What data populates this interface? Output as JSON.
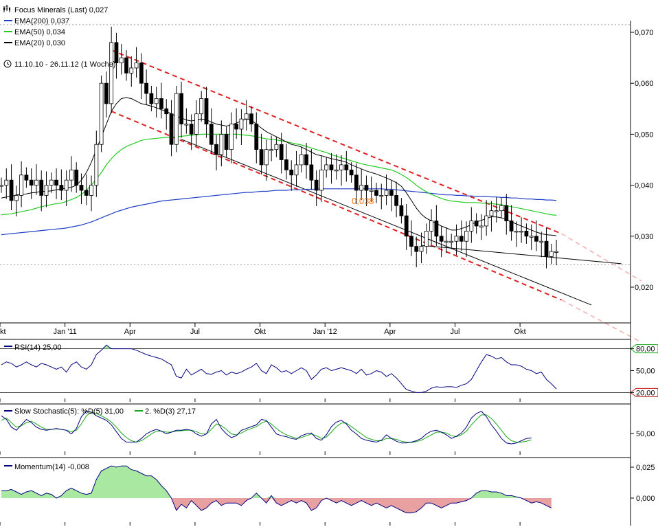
{
  "header": {
    "title": "Focus Minerals (Last) 0,027",
    "ema200": "EMA(200) 0,037",
    "ema50": "EMA(50) 0,034",
    "ema20": "EMA(20) 0,030",
    "period": "11.10.10 - 26.11.12 (1 Woche)",
    "annotation": "0,038"
  },
  "colors": {
    "ema200": "#1f3fc8",
    "ema50": "#22cc22",
    "ema20": "#000000",
    "channel": "#e02020",
    "annotation": "#f07818",
    "positive_fill": "#a8e8a0",
    "negative_fill": "#e8a0a0",
    "indicator_line": "#000080",
    "signal_line": "#18a818"
  },
  "chart_data": {
    "type": "candlestick",
    "instrument": "Focus Minerals",
    "interval": "1 Woche",
    "ylim": [
      0.014,
      0.072
    ],
    "yticks": [
      {
        "value": 0.07,
        "label": "0,070"
      },
      {
        "value": 0.06,
        "label": "0,060"
      },
      {
        "value": 0.05,
        "label": "0,050"
      },
      {
        "value": 0.04,
        "label": "0,040"
      },
      {
        "value": 0.03,
        "label": "0,030"
      },
      {
        "value": 0.02,
        "label": "0,020"
      }
    ],
    "xticks": [
      {
        "week": 0,
        "label": "Okt"
      },
      {
        "week": 13,
        "label": "Jan '11"
      },
      {
        "week": 26,
        "label": "Apr"
      },
      {
        "week": 39,
        "label": "Jul"
      },
      {
        "week": 52,
        "label": "Okt"
      },
      {
        "week": 65,
        "label": "Jan '12"
      },
      {
        "week": 78,
        "label": "Apr"
      },
      {
        "week": 91,
        "label": "Jul"
      },
      {
        "week": 104,
        "label": "Okt"
      }
    ],
    "total_weeks": 112,
    "first_week": 0,
    "dotted_level_high": 0.0715,
    "dotted_level_low": 0.0244,
    "close": [
      0.04,
      0.041,
      0.037,
      0.038,
      0.042,
      0.041,
      0.04,
      0.041,
      0.038,
      0.04,
      0.041,
      0.04,
      0.039,
      0.041,
      0.043,
      0.04,
      0.039,
      0.038,
      0.04,
      0.048,
      0.06,
      0.056,
      0.068,
      0.064,
      0.065,
      0.062,
      0.063,
      0.064,
      0.06,
      0.058,
      0.056,
      0.057,
      0.055,
      0.054,
      0.048,
      0.058,
      0.052,
      0.052,
      0.05,
      0.054,
      0.057,
      0.052,
      0.048,
      0.046,
      0.05,
      0.047,
      0.052,
      0.051,
      0.053,
      0.054,
      0.052,
      0.047,
      0.044,
      0.047,
      0.047,
      0.048,
      0.045,
      0.043,
      0.042,
      0.044,
      0.046,
      0.044,
      0.041,
      0.039,
      0.043,
      0.044,
      0.043,
      0.043,
      0.044,
      0.043,
      0.042,
      0.039,
      0.04,
      0.039,
      0.039,
      0.038,
      0.038,
      0.039,
      0.038,
      0.036,
      0.034,
      0.03,
      0.028,
      0.027,
      0.028,
      0.031,
      0.033,
      0.03,
      0.029,
      0.029,
      0.029,
      0.03,
      0.029,
      0.031,
      0.033,
      0.032,
      0.032,
      0.034,
      0.035,
      0.035,
      0.036,
      0.033,
      0.031,
      0.031,
      0.031,
      0.03,
      0.03,
      0.029,
      0.029,
      0.026,
      0.027,
      0.027
    ],
    "ema20": [
      0.0375,
      0.0377,
      0.0378,
      0.0381,
      0.0382,
      0.0383,
      0.0385,
      0.0386,
      0.0388,
      0.0388,
      0.0389,
      0.0391,
      0.0393,
      0.0394,
      0.0396,
      0.04,
      0.041,
      0.0425,
      0.0445,
      0.047,
      0.0495,
      0.052,
      0.0545,
      0.056,
      0.057,
      0.0572,
      0.057,
      0.0565,
      0.056,
      0.0558,
      0.0555,
      0.0552,
      0.0548,
      0.0545,
      0.054,
      0.0535,
      0.0532,
      0.0528,
      0.0526,
      0.0528,
      0.053,
      0.0528,
      0.0524,
      0.052,
      0.0518,
      0.0516,
      0.0518,
      0.0522,
      0.0526,
      0.053,
      0.0528,
      0.052,
      0.0512,
      0.0505,
      0.05,
      0.0495,
      0.049,
      0.0485,
      0.048,
      0.0478,
      0.0475,
      0.047,
      0.0465,
      0.046,
      0.0458,
      0.0455,
      0.0452,
      0.045,
      0.0448,
      0.0445,
      0.044,
      0.0436,
      0.0432,
      0.0428,
      0.0425,
      0.0422,
      0.0418,
      0.0414,
      0.041,
      0.0405,
      0.0398,
      0.0385,
      0.037,
      0.0355,
      0.0343,
      0.0335,
      0.033,
      0.0325,
      0.032,
      0.0316,
      0.0312,
      0.0312,
      0.0315,
      0.0318,
      0.0323,
      0.0328,
      0.0331,
      0.0335,
      0.0338,
      0.0338,
      0.0336,
      0.0332,
      0.0328,
      0.0324,
      0.032,
      0.0316,
      0.0312,
      0.0308,
      0.0305,
      0.0303,
      0.0302,
      0.0301
    ],
    "ema50": [
      0.0342,
      0.0343,
      0.0344,
      0.0346,
      0.0348,
      0.035,
      0.0352,
      0.0355,
      0.0358,
      0.036,
      0.0362,
      0.0364,
      0.0365,
      0.0368,
      0.0372,
      0.0376,
      0.0382,
      0.039,
      0.04,
      0.0412,
      0.0425,
      0.044,
      0.0452,
      0.0462,
      0.047,
      0.0476,
      0.048,
      0.0484,
      0.0488,
      0.049,
      0.0491,
      0.0492,
      0.0493,
      0.0494,
      0.0494,
      0.0495,
      0.0496,
      0.0497,
      0.0498,
      0.0499,
      0.05,
      0.05,
      0.05,
      0.05,
      0.05,
      0.05,
      0.05,
      0.05,
      0.0499,
      0.0498,
      0.0497,
      0.0495,
      0.0493,
      0.0491,
      0.049,
      0.0489,
      0.0487,
      0.0485,
      0.0483,
      0.0481,
      0.0479,
      0.0476,
      0.0473,
      0.047,
      0.0467,
      0.0464,
      0.046,
      0.0457,
      0.0454,
      0.0451,
      0.0448,
      0.0445,
      0.0442,
      0.044,
      0.0438,
      0.0436,
      0.0434,
      0.0432,
      0.043,
      0.0426,
      0.0421,
      0.0415,
      0.0408,
      0.04,
      0.0393,
      0.0387,
      0.0382,
      0.0378,
      0.0374,
      0.0371,
      0.0369,
      0.0368,
      0.0367,
      0.0366,
      0.0366,
      0.0366,
      0.0365,
      0.0365,
      0.0364,
      0.0363,
      0.0362,
      0.036,
      0.0358,
      0.0356,
      0.0354,
      0.0352,
      0.035,
      0.0348,
      0.0346,
      0.0344,
      0.0342,
      0.0341
    ],
    "ema200": [
      0.0303,
      0.0304,
      0.0305,
      0.0306,
      0.0307,
      0.0308,
      0.0309,
      0.031,
      0.0311,
      0.0312,
      0.0313,
      0.0314,
      0.0315,
      0.0316,
      0.0318,
      0.032,
      0.0322,
      0.0325,
      0.0328,
      0.0332,
      0.0336,
      0.034,
      0.0344,
      0.0348,
      0.0351,
      0.0354,
      0.0357,
      0.0359,
      0.0361,
      0.0363,
      0.0365,
      0.0367,
      0.0369,
      0.037,
      0.0371,
      0.0372,
      0.0373,
      0.0374,
      0.0375,
      0.0376,
      0.0377,
      0.0378,
      0.0379,
      0.038,
      0.0381,
      0.0382,
      0.0383,
      0.0384,
      0.0385,
      0.0386,
      0.0386,
      0.0387,
      0.0388,
      0.0388,
      0.0389,
      0.039,
      0.039,
      0.039,
      0.0391,
      0.0391,
      0.0391,
      0.0392,
      0.0392,
      0.0392,
      0.0393,
      0.0393,
      0.0393,
      0.0393,
      0.0393,
      0.0393,
      0.0393,
      0.0393,
      0.0393,
      0.0393,
      0.0393,
      0.0393,
      0.0393,
      0.0392,
      0.0392,
      0.0391,
      0.039,
      0.0389,
      0.0388,
      0.0387,
      0.0386,
      0.0385,
      0.0384,
      0.0383,
      0.0382,
      0.0381,
      0.0381,
      0.038,
      0.038,
      0.0379,
      0.0379,
      0.0378,
      0.0378,
      0.0378,
      0.0377,
      0.0377,
      0.0376,
      0.0376,
      0.0375,
      0.0375,
      0.0374,
      0.0373,
      0.0373,
      0.0372,
      0.0372,
      0.0371,
      0.0371,
      0.037
    ],
    "channel_lines": [
      {
        "style": "dashed",
        "color": "red",
        "from": [
          22,
          0.0665
        ],
        "to": [
          112,
          0.0305
        ],
        "extend_to": [
          128,
          0.0212
        ]
      },
      {
        "style": "dashed",
        "color": "red",
        "from": [
          22,
          0.0545
        ],
        "to": [
          112,
          0.0175
        ],
        "extend_to": [
          128,
          0.0092
        ]
      },
      {
        "style": "solid",
        "color": "black",
        "from": [
          36,
          0.049
        ],
        "to": [
          118,
          0.0165
        ]
      },
      {
        "style": "solid",
        "color": "black",
        "from": [
          84,
          0.0282
        ],
        "to": [
          124,
          0.0246
        ]
      }
    ],
    "rsi": {
      "title": "RSI(14) 25,00",
      "ylim": [
        10,
        90
      ],
      "levels": [
        {
          "value": 80,
          "label": "80,00"
        },
        {
          "value": 50,
          "label": "50,00"
        },
        {
          "value": 20,
          "label": "20,00"
        }
      ],
      "values": [
        58,
        62,
        60,
        55,
        58,
        62,
        58,
        55,
        60,
        58,
        55,
        52,
        55,
        48,
        58,
        62,
        55,
        52,
        58,
        72,
        78,
        85,
        80,
        80,
        80,
        80,
        80,
        78,
        75,
        72,
        70,
        68,
        66,
        62,
        58,
        42,
        40,
        52,
        44,
        48,
        52,
        46,
        45,
        48,
        50,
        44,
        48,
        46,
        48,
        52,
        55,
        60,
        50,
        46,
        58,
        54,
        48,
        50,
        46,
        50,
        54,
        50,
        38,
        44,
        52,
        54,
        50,
        52,
        54,
        52,
        50,
        46,
        52,
        44,
        46,
        50,
        48,
        42,
        46,
        40,
        32,
        24,
        22,
        20,
        20,
        22,
        26,
        28,
        27,
        28,
        28,
        27,
        30,
        32,
        38,
        50,
        62,
        72,
        70,
        66,
        68,
        62,
        58,
        58,
        56,
        52,
        50,
        46,
        48,
        38,
        32,
        25
      ]
    },
    "stochastic": {
      "title": "Slow Stochastic(5): %D(5) 31,00",
      "title2": "2. %D(3) 27,17",
      "ylim": [
        0,
        100
      ],
      "levels": [
        {
          "value": 50,
          "label": "50,00"
        }
      ],
      "d": [
        80,
        72,
        55,
        48,
        60,
        72,
        65,
        55,
        50,
        48,
        50,
        52,
        50,
        48,
        40,
        52,
        78,
        90,
        88,
        80,
        75,
        70,
        60,
        45,
        30,
        22,
        22,
        22,
        30,
        40,
        46,
        50,
        46,
        40,
        44,
        48,
        48,
        50,
        48,
        40,
        35,
        40,
        62,
        72,
        52,
        40,
        32,
        36,
        48,
        52,
        56,
        60,
        72,
        70,
        55,
        40,
        36,
        34,
        30,
        28,
        36,
        40,
        42,
        30,
        26,
        38,
        56,
        66,
        70,
        62,
        48,
        40,
        30,
        26,
        24,
        22,
        26,
        38,
        30,
        24,
        20,
        20,
        22,
        25,
        30,
        40,
        46,
        48,
        44,
        38,
        30,
        35,
        42,
        55,
        75,
        85,
        90,
        78,
        60,
        46,
        30,
        20,
        18,
        20,
        25,
        30,
        31
      ],
      "d2": [
        70,
        75,
        65,
        55,
        58,
        65,
        68,
        62,
        55,
        50,
        50,
        51,
        50,
        48,
        45,
        48,
        62,
        80,
        88,
        85,
        80,
        74,
        66,
        55,
        42,
        32,
        25,
        22,
        25,
        32,
        40,
        46,
        46,
        44,
        44,
        46,
        47,
        48,
        48,
        45,
        40,
        40,
        50,
        62,
        58,
        50,
        40,
        38,
        42,
        48,
        52,
        56,
        64,
        68,
        62,
        52,
        44,
        38,
        34,
        30,
        32,
        36,
        40,
        36,
        30,
        33,
        44,
        56,
        64,
        64,
        56,
        48,
        40,
        32,
        28,
        25,
        25,
        30,
        30,
        28,
        24,
        22,
        21,
        23,
        26,
        32,
        38,
        44,
        44,
        42,
        36,
        34,
        38,
        46,
        60,
        72,
        82,
        82,
        74,
        62,
        48,
        34,
        25,
        22,
        22,
        24,
        27
      ]
    },
    "momentum": {
      "title": "Momentum(14) -0,008",
      "ylim": [
        -0.012,
        0.032
      ],
      "levels": [
        {
          "value": 0.025,
          "label": "0,025"
        },
        {
          "value": 0.0,
          "label": "0,000"
        }
      ],
      "values": [
        0.006,
        0.006,
        0.007,
        0.005,
        0.003,
        0.005,
        0.006,
        0.004,
        0.002,
        0.004,
        0.003,
        0.0,
        0.002,
        0.006,
        0.008,
        0.006,
        0.004,
        0.003,
        0.004,
        0.015,
        0.022,
        0.024,
        0.026,
        0.025,
        0.026,
        0.026,
        0.023,
        0.022,
        0.02,
        0.018,
        0.018,
        0.015,
        0.01,
        0.006,
        0.0,
        -0.01,
        -0.005,
        -0.008,
        -0.002,
        -0.006,
        -0.01,
        -0.008,
        -0.004,
        -0.002,
        -0.006,
        -0.004,
        -0.004,
        -0.004,
        -0.006,
        -0.002,
        0.0,
        0.004,
        0.0,
        -0.004,
        0.002,
        -0.004,
        -0.006,
        -0.004,
        -0.002,
        -0.004,
        -0.002,
        -0.004,
        -0.01,
        -0.008,
        -0.002,
        0.0,
        -0.002,
        -0.004,
        -0.002,
        -0.004,
        -0.006,
        -0.004,
        -0.002,
        -0.004,
        -0.006,
        -0.004,
        -0.006,
        -0.008,
        -0.006,
        -0.008,
        -0.01,
        -0.012,
        -0.012,
        -0.011,
        -0.008,
        -0.004,
        -0.004,
        -0.006,
        -0.008,
        -0.006,
        -0.004,
        -0.004,
        -0.003,
        -0.002,
        0.0,
        0.004,
        0.006,
        0.006,
        0.005,
        0.005,
        0.004,
        0.002,
        0.002,
        0.001,
        0.0,
        -0.002,
        -0.004,
        -0.003,
        -0.004,
        -0.006,
        -0.008
      ]
    }
  }
}
